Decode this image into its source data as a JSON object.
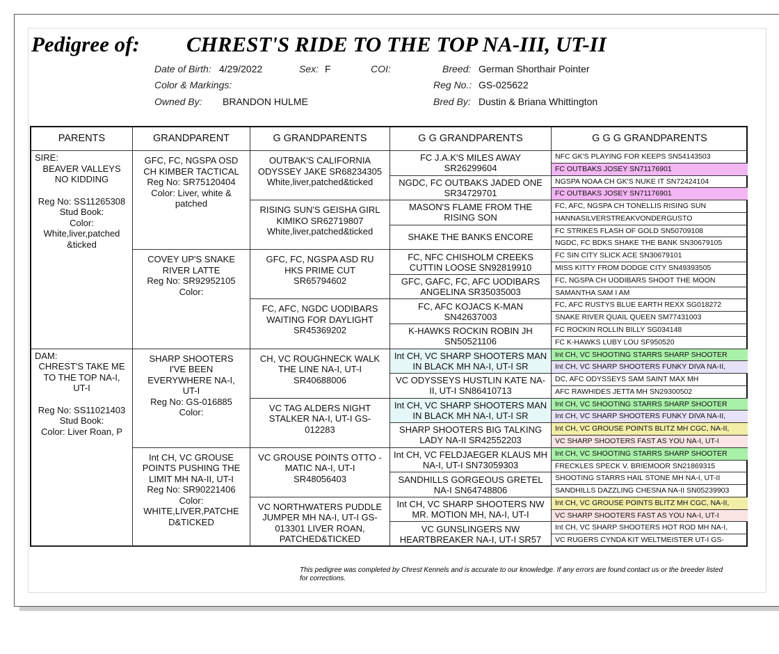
{
  "header": {
    "label": "Pedigree of:",
    "name": "CHREST'S RIDE TO THE TOP NA-III, UT-II",
    "fields": [
      {
        "label": "Date of Birth:",
        "value": "4/29/2022"
      },
      {
        "label": "Sex:",
        "value": "F"
      },
      {
        "label": "COI:",
        "value": ""
      },
      {
        "label": "Breed:",
        "value": "German Shorthair Pointer"
      },
      {
        "label": "Color & Markings:",
        "value": ""
      },
      {
        "label": "Reg No.:",
        "value": "GS-025622"
      },
      {
        "label": "Owned By:",
        "value": "BRANDON HULME"
      },
      {
        "label": "Bred By:",
        "value": "Dustin & Briana Whittington"
      }
    ]
  },
  "table": {
    "headers": [
      "PARENTS",
      "GRANDPARENT",
      "G GRANDPARENTS",
      "G G GRANDPARENTS",
      "G G G GRANDPARENTS"
    ],
    "parents": [
      {
        "role": "SIRE:",
        "lines": [
          "BEAVER VALLEYS NO KIDDING",
          "Reg No: SS11265308",
          "Stud Book:",
          "Color: White,liver,patched &ticked"
        ]
      },
      {
        "role": "DAM:",
        "lines": [
          "CHREST'S TAKE ME TO THE TOP NA-I, UT-I",
          "Reg No: SS11021403",
          "Stud Book:",
          "Color: Liver Roan, P"
        ]
      }
    ],
    "grandparents": [
      [
        "GFC, FC, NGSPA OSD CH KIMBER TACTICAL",
        "Reg No: SR75120404",
        "Color: Liver, white & patched"
      ],
      [
        "COVEY UP'S SNAKE RIVER LATTE",
        "Reg No: SR92952105",
        "Color:"
      ],
      [
        "SHARP SHOOTERS I'VE BEEN EVERYWHERE NA-I, UT-I",
        "Reg No: GS-016885",
        "Color:"
      ],
      [
        "Int CH, VC GROUSE POINTS PUSHING THE LIMIT MH NA-II, UT-I",
        "Reg No: SR90221406",
        "Color:",
        "WHITE,LIVER,PATCHE D&TICKED"
      ]
    ],
    "g_grandparents": [
      [
        "OUTBAK'S CALIFORNIA ODYSSEY JAKE SR68234305",
        "White,liver,patched&ticked"
      ],
      [
        "RISING SUN'S GEISHA GIRL KIMIKO SR62719807",
        "White,liver,patched&ticked"
      ],
      [
        "GFC, FC, NGSPA ASD RU HKS PRIME CUT SR65794602"
      ],
      [
        "FC, AFC, NGDC UODIBARS WAITING FOR DAYLIGHT SR45369202"
      ],
      [
        "CH, VC ROUGHNECK WALK THE LINE NA-I, UT-I SR40688006"
      ],
      [
        "VC TAG ALDERS NIGHT STALKER NA-I, UT-I GS-012283"
      ],
      [
        "VC GROUSE POINTS OTTO -MATIC NA-I, UT-I SR48056403"
      ],
      [
        "VC NORTHWATERS PUDDLE JUMPER MH NA-I, UT-I GS-013301 LIVER ROAN, PATCHED&TICKED"
      ]
    ],
    "gg_grandparents": [
      {
        "text": "FC J.A.K'S MILES AWAY SR26299604"
      },
      {
        "text": "NGDC, FC OUTBAKS JADED ONE SR34729701"
      },
      {
        "text": "MASON'S FLAME FROM THE RISING SON"
      },
      {
        "text": "SHAKE THE BANKS ENCORE"
      },
      {
        "text": "FC, NFC CHISHOLM CREEKS CUTTIN LOOSE SN92819910"
      },
      {
        "text": "GFC, GAFC, FC, AFC UODIBARS ANGELINA SR35035003"
      },
      {
        "text": "FC, AFC KOJACS K-MAN SN42637003"
      },
      {
        "text": "K-HAWKS ROCKIN ROBIN JH SN50521106"
      },
      {
        "text": "Int CH, VC SHARP SHOOTERS MAN IN BLACK MH NA-I, UT-I SR",
        "highlight": "#e6f7f7"
      },
      {
        "text": "VC ODYSSEYS HUSTLIN KATE NA-II, UT-I SN86410713"
      },
      {
        "text": "Int CH, VC SHARP SHOOTERS MAN IN BLACK MH NA-I, UT-I SR",
        "highlight": "#e6f7f7"
      },
      {
        "text": "SHARP SHOOTERS BIG TALKING LADY NA-II SR42552203"
      },
      {
        "text": "Int CH, VC FELDJAEGER KLAUS MH NA-I, UT-I SN73059303"
      },
      {
        "text": "SANDHILLS GORGEOUS GRETEL NA-I SN64748806"
      },
      {
        "text": "Int CH, VC SHARP SHOOTERS NW MR. MOTION MH, NA-I, UT-I"
      },
      {
        "text": "VC GUNSLINGERS NW HEARTBREAKER NA-I, UT-I SR57"
      }
    ],
    "ggg_grandparents": [
      {
        "text": "NFC GK'S PLAYING FOR KEEPS SN54143503"
      },
      {
        "text": "FC OUTBAKS JOSEY SN71176901",
        "highlight": "#f2b6f2"
      },
      {
        "text": "NGSPA NOAA CH GK'S NUKE IT SN72424104"
      },
      {
        "text": "FC OUTBAKS JOSEY SN71176901",
        "highlight": "#f2b6f2"
      },
      {
        "text": "FC, AFC, NGSPA CH TONELLIS RISING SUN"
      },
      {
        "text": "HANNASILVERSTREAKVONDERGUSTO"
      },
      {
        "text": "FC STRIKES FLASH OF GOLD SN50709108"
      },
      {
        "text": "NGDC, FC BDKS SHAKE THE BANK SN30679105"
      },
      {
        "text": "FC SIN CITY SLICK ACE SN30679101"
      },
      {
        "text": "MISS KITTY FROM DODGE CITY SN49393505"
      },
      {
        "text": "FC, NGSPA CH UODIBARS SHOOT THE MOON"
      },
      {
        "text": "SAMANTHA SAM I AM"
      },
      {
        "text": "FC, AFC RUSTYS BLUE EARTH REXX SG018272"
      },
      {
        "text": "SNAKE RIVER QUAIL QUEEN SM77431003"
      },
      {
        "text": "FC ROCKIN ROLLIN BILLY SG034148"
      },
      {
        "text": "FC K-HAWKS LUBY LOU SF950520"
      },
      {
        "text": "Int CH, VC SHOOTING STARRS SHARP SHOOTER",
        "highlight": "#a9f0a9"
      },
      {
        "text": "Int CH, VC SHARP SHOOTERS FUNKY DIVA NA-II,",
        "highlight": "#e8e2f8"
      },
      {
        "text": "DC, AFC ODYSSEYS SAM SAINT MAX MH"
      },
      {
        "text": "AFC RAWHIDES JETTA MH SN29300502"
      },
      {
        "text": "Int CH, VC SHOOTING STARRS SHARP SHOOTER",
        "highlight": "#a9f0a9"
      },
      {
        "text": "Int CH, VC SHARP SHOOTERS FUNKY DIVA NA-II,",
        "highlight": "#e8e2f8"
      },
      {
        "text": "Int CH, VC GROUSE POINTS BLITZ MH CGC, NA-II,",
        "highlight": "#f2eea8"
      },
      {
        "text": "VC SHARP SHOOTERS FAST AS YOU NA-I, UT-I",
        "highlight": "#fbe4e4"
      },
      {
        "text": "Int CH, VC SHOOTING STARRS SHARP SHOOTER",
        "highlight": "#a9f0a9"
      },
      {
        "text": "FRECKLES SPECK V. BRIEMOOR SN21869315"
      },
      {
        "text": "SHOOTING STARRS HAIL STONE MH NA-I, UT-II"
      },
      {
        "text": "SANDHILLS DAZZLING CHESNA NA-II SN05239903"
      },
      {
        "text": "Int CH, VC GROUSE POINTS BLITZ MH CGC, NA-II,",
        "highlight": "#f2eea8"
      },
      {
        "text": "VC SHARP SHOOTERS FAST AS YOU NA-I, UT-I",
        "highlight": "#fbe4e4"
      },
      {
        "text": "Int CH, VC SHARP SHOOTERS HOT ROD MH NA-I,"
      },
      {
        "text": "VC RUGERS CYNDA KIT WELTMEISTER UT-I GS-"
      }
    ]
  },
  "footer": "This pedigree was completed by Chrest Kennels and is accurate to our knowledge. If any errors are found contact us or the breeder listed for corrections."
}
